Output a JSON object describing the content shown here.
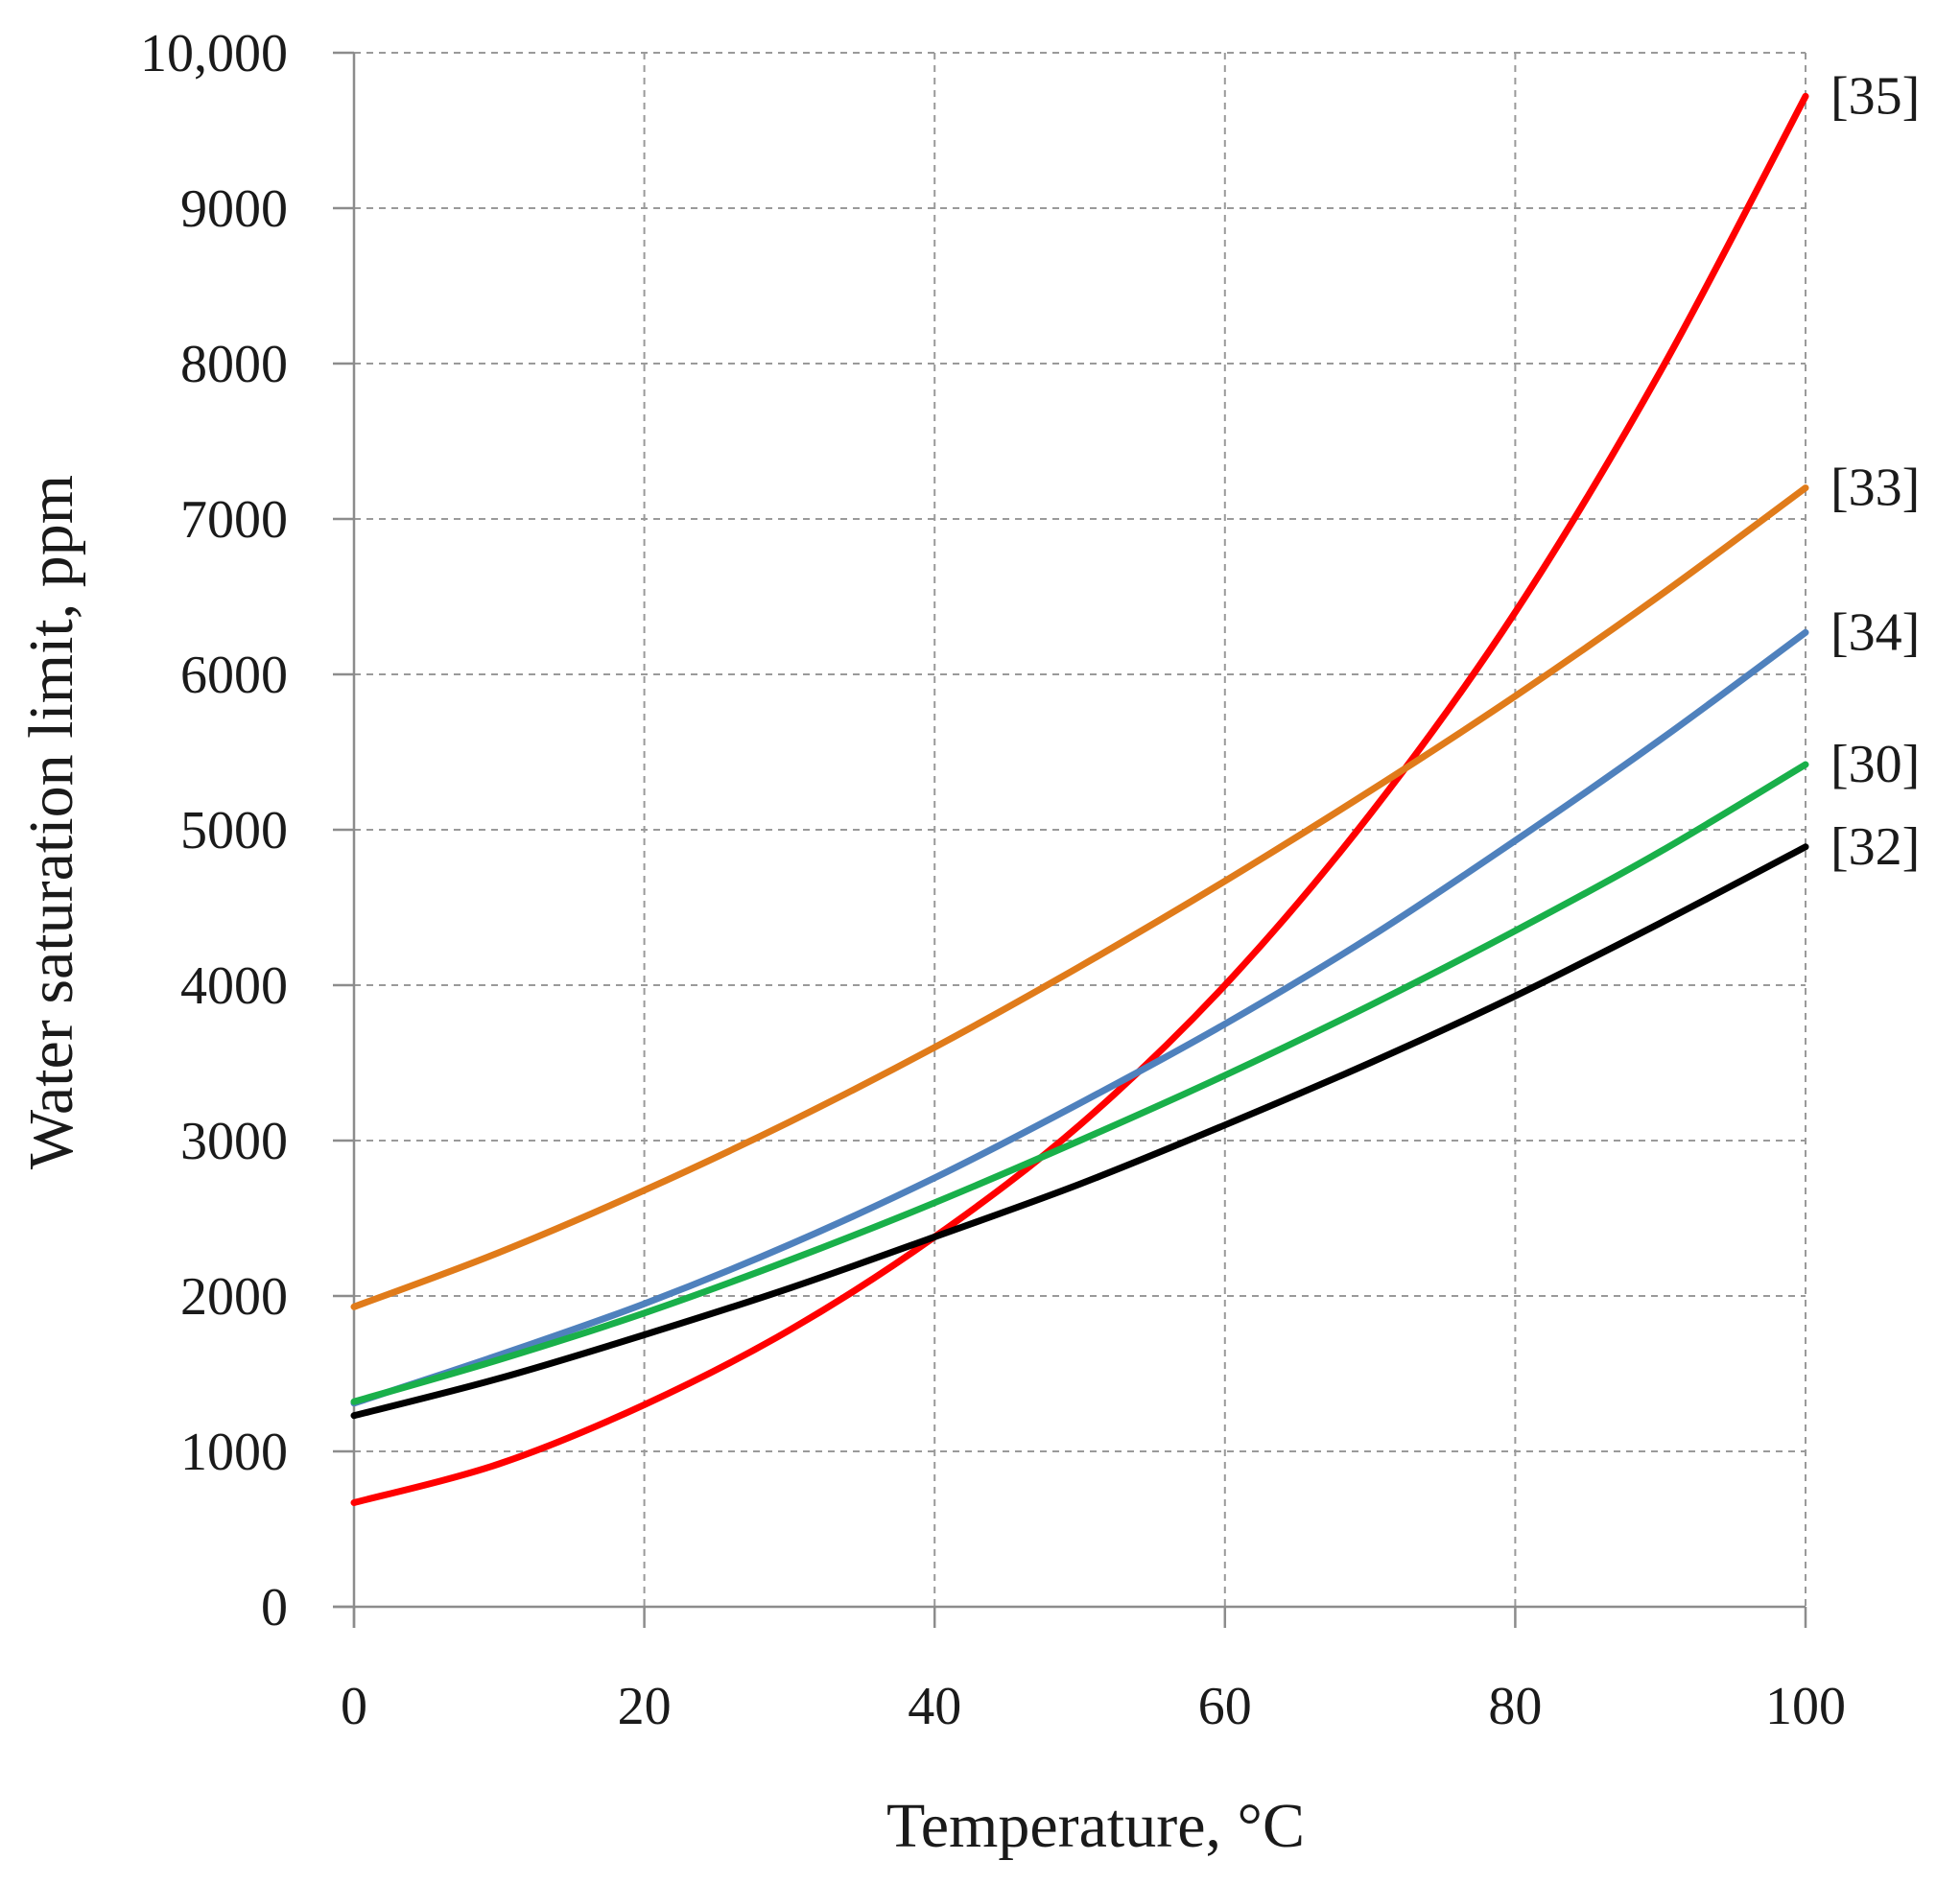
{
  "chart_data": {
    "type": "line",
    "title": "",
    "xlabel": "Temperature, °C",
    "ylabel": "Water saturation limit, ppm",
    "xlim": [
      0,
      100
    ],
    "ylim": [
      0,
      10000
    ],
    "grid": true,
    "x_ticks": [
      0,
      20,
      40,
      60,
      80,
      100
    ],
    "x_tick_labels": [
      "0",
      "20",
      "40",
      "60",
      "80",
      "100"
    ],
    "y_ticks": [
      0,
      1000,
      2000,
      3000,
      4000,
      5000,
      6000,
      7000,
      8000,
      9000,
      10000
    ],
    "y_tick_labels": [
      "0",
      "1000",
      "2000",
      "3000",
      "4000",
      "5000",
      "6000",
      "7000",
      "8000",
      "9000",
      "10,000"
    ],
    "x": [
      0,
      10,
      20,
      30,
      40,
      50,
      60,
      70,
      80,
      90,
      100
    ],
    "series": [
      {
        "name": "[35]",
        "color": "#ff0000",
        "values": [
          670,
          920,
          1300,
          1780,
          2380,
          3100,
          4000,
          5100,
          6400,
          7950,
          9720
        ]
      },
      {
        "name": "[33]",
        "color": "#e07b1a",
        "values": [
          1930,
          2280,
          2680,
          3120,
          3600,
          4120,
          4670,
          5250,
          5860,
          6510,
          7200
        ]
      },
      {
        "name": "[34]",
        "color": "#4f81bd",
        "values": [
          1310,
          1620,
          1950,
          2330,
          2760,
          3240,
          3750,
          4310,
          4930,
          5580,
          6270
        ]
      },
      {
        "name": "[30]",
        "color": "#19b04a",
        "values": [
          1320,
          1590,
          1890,
          2230,
          2600,
          3000,
          3420,
          3870,
          4350,
          4860,
          5420
        ]
      },
      {
        "name": "[32]",
        "color": "#000000",
        "values": [
          1230,
          1470,
          1750,
          2050,
          2380,
          2720,
          3100,
          3500,
          3930,
          4400,
          4890
        ]
      }
    ]
  }
}
